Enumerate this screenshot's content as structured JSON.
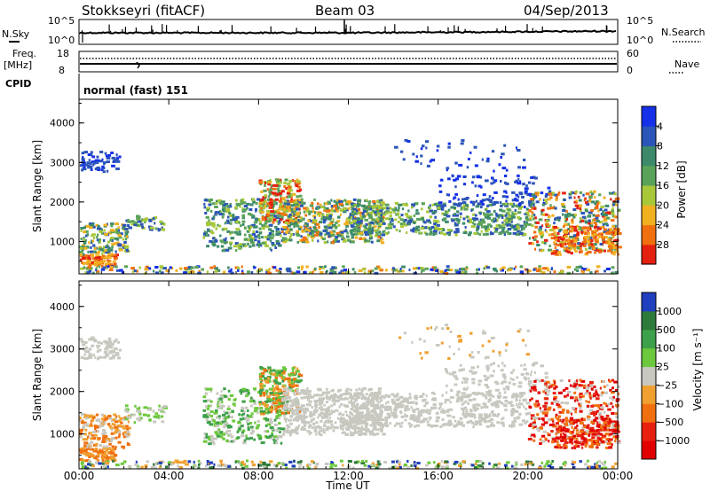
{
  "header": {
    "station": "Stokkseyri (fitACF)",
    "beam": "Beam 03",
    "date": "04/Sep/2013"
  },
  "top_panels": {
    "nsky_label": "N.Sky",
    "nsky_ticks": [
      "10^5",
      "10^0"
    ],
    "nsearch_label": "N.Search",
    "nsearch_ticks": [
      "10^5",
      "10^0"
    ],
    "freq_label": "Freq.",
    "freq_unit": "[MHz]",
    "freq_ticks": [
      "18",
      "8"
    ],
    "nave_label": "Nave",
    "nave_ticks": [
      "60",
      "0"
    ],
    "cpid_label": "CPID",
    "cpid_value": "normal (fast) 151"
  },
  "chart_data": [
    {
      "type": "heatmap",
      "name": "power",
      "ylabel": "Slant Range [km]",
      "xlabel": "Time UT",
      "x_ticks": [
        "00:00",
        "04:00",
        "08:00",
        "12:00",
        "16:00",
        "20:00",
        "00:00"
      ],
      "x_range_hours": [
        0,
        24
      ],
      "y_ticks": [
        "1000",
        "2000",
        "3000",
        "4000"
      ],
      "y_range_km": [
        180,
        4600
      ],
      "colorbar": {
        "label": "Power [dB]",
        "ticks": [
          "4",
          "8",
          "12",
          "16",
          "20",
          "24",
          "28"
        ],
        "colors": [
          "#1530e8",
          "#2b55b8",
          "#3c8a6a",
          "#5aa35a",
          "#a8c83a",
          "#f0b020",
          "#f07010",
          "#e42010"
        ]
      }
    },
    {
      "type": "heatmap",
      "name": "velocity",
      "ylabel": "Slant Range [km]",
      "xlabel": "Time UT",
      "x_ticks": [
        "00:00",
        "04:00",
        "08:00",
        "12:00",
        "16:00",
        "20:00",
        "00:00"
      ],
      "x_range_hours": [
        0,
        24
      ],
      "y_ticks": [
        "1000",
        "2000",
        "3000",
        "4000"
      ],
      "y_range_km": [
        180,
        4600
      ],
      "colorbar": {
        "label": "Velocity [m s⁻¹]",
        "ticks": [
          "1000",
          "500",
          "100",
          "25",
          "−25",
          "−100",
          "−500",
          "−1000"
        ],
        "colors": [
          "#1f3fbf",
          "#2e7a3a",
          "#3da04a",
          "#6cc83c",
          "#c8c8c0",
          "#f0a030",
          "#f07010",
          "#e82010",
          "#e00000"
        ]
      }
    }
  ],
  "footer": {
    "time_label": "Time UT"
  }
}
